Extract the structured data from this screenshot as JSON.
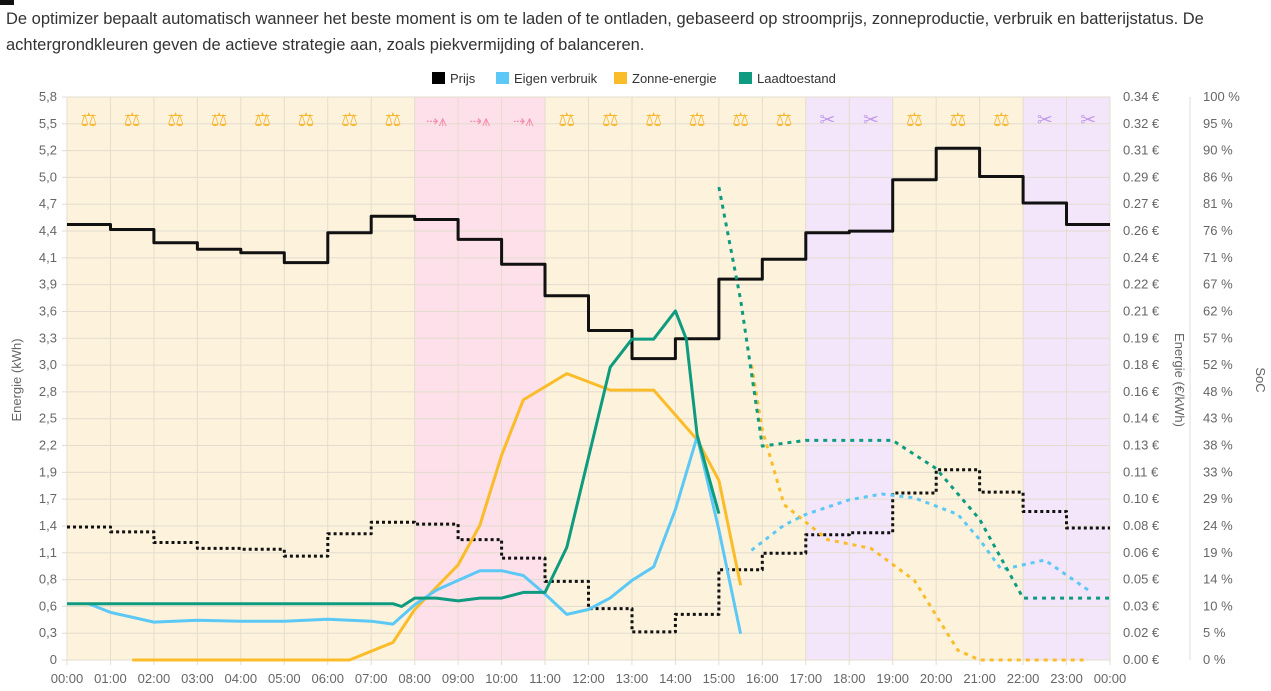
{
  "intro_text": "De optimizer bepaalt automatisch wanneer het beste moment is om te laden of te ontladen, gebaseerd op stroomprijs, zonneproductie, verbruik en batterijstatus. De achtergrondkleuren geven de actieve strategie aan, zoals piekvermijding of balanceren.",
  "colors": {
    "price": "#000000",
    "consumption": "#5bc8f5",
    "solar": "#fbbc2a",
    "soc": "#0e9b7f",
    "balance_bg": "#fdf3dc",
    "grid_bg": "#fde0ea",
    "peak_bg": "#f3e6fb",
    "balance_icon": "#f7b731",
    "grid_icon": "#f48fb1",
    "peak_icon": "#c39be8"
  },
  "chart_data": {
    "type": "line",
    "legend": [
      "Prijs",
      "Eigen verbruik",
      "Zonne-energie",
      "Laadtoestand"
    ],
    "legend_position": "top-center",
    "ylabel_left": "Energie (kWh)",
    "ylabel_right": "Energie (€/kWh)",
    "ylabel_soc": "SoC",
    "x_ticks": [
      "00:00",
      "01:00",
      "02:00",
      "03:00",
      "04:00",
      "05:00",
      "06:00",
      "07:00",
      "08:00",
      "09:00",
      "10:00",
      "11:00",
      "12:00",
      "13:00",
      "14:00",
      "15:00",
      "16:00",
      "17:00",
      "18:00",
      "19:00",
      "20:00",
      "21:00",
      "22:00",
      "23:00",
      "00:00"
    ],
    "y_left_ticks": [
      "5,8",
      "5,5",
      "5,2",
      "5,0",
      "4,7",
      "4,4",
      "4,1",
      "3,9",
      "3,6",
      "3,3",
      "3,0",
      "2,8",
      "2,5",
      "2,2",
      "1,9",
      "1,7",
      "1,4",
      "1,1",
      "0,8",
      "0,6",
      "0,3",
      "0"
    ],
    "y_price_ticks": [
      "0.34 €",
      "0.32 €",
      "0.31 €",
      "0.29 €",
      "0.27 €",
      "0.26 €",
      "0.24 €",
      "0.22 €",
      "0.21 €",
      "0.19 €",
      "0.18 €",
      "0.16 €",
      "0.14 €",
      "0.13 €",
      "0.11 €",
      "0.10 €",
      "0.08 €",
      "0.06 €",
      "0.05 €",
      "0.03 €",
      "0.02 €",
      "0.00 €"
    ],
    "y_soc_ticks": [
      "100 %",
      "95 %",
      "90 %",
      "86 %",
      "81 %",
      "76 %",
      "71 %",
      "67 %",
      "62 %",
      "57 %",
      "52 %",
      "48 %",
      "43 %",
      "38 %",
      "33 %",
      "29 %",
      "24 %",
      "19 %",
      "14 %",
      "10 %",
      "5 %",
      "0 %"
    ],
    "ylim_left": [
      0,
      5.8
    ],
    "ylim_price": [
      0,
      0.34
    ],
    "ylim_soc": [
      0,
      100
    ],
    "xlim_hours": [
      0,
      24
    ],
    "strategies": [
      "balance",
      "balance",
      "balance",
      "balance",
      "balance",
      "balance",
      "balance",
      "balance",
      "grid",
      "grid",
      "grid",
      "balance",
      "balance",
      "balance",
      "balance",
      "balance",
      "balance",
      "peak",
      "peak",
      "balance",
      "balance",
      "balance",
      "peak",
      "peak"
    ],
    "price_eur": [
      0.263,
      0.26,
      0.252,
      0.248,
      0.246,
      0.24,
      0.258,
      0.268,
      0.266,
      0.254,
      0.239,
      0.22,
      0.199,
      0.182,
      0.194,
      0.23,
      0.242,
      0.258,
      0.259,
      0.29,
      0.309,
      0.292,
      0.276,
      0.263
    ],
    "price_dotted_kwh": [
      1.37,
      1.32,
      1.21,
      1.15,
      1.14,
      1.07,
      1.3,
      1.42,
      1.4,
      1.24,
      1.05,
      0.81,
      0.53,
      0.29,
      0.47,
      0.93,
      1.1,
      1.29,
      1.31,
      1.72,
      1.96,
      1.73,
      1.53,
      1.36
    ],
    "consumption": [
      [
        0.5,
        0.58
      ],
      [
        1,
        0.49
      ],
      [
        2,
        0.39
      ],
      [
        3,
        0.41
      ],
      [
        4,
        0.4
      ],
      [
        5,
        0.4
      ],
      [
        6,
        0.42
      ],
      [
        7,
        0.4
      ],
      [
        7.5,
        0.37
      ],
      [
        8,
        0.57
      ],
      [
        8.5,
        0.72
      ],
      [
        9,
        0.82
      ],
      [
        9.5,
        0.92
      ],
      [
        10,
        0.92
      ],
      [
        10.5,
        0.87
      ],
      [
        11,
        0.68
      ],
      [
        11.5,
        0.47
      ],
      [
        12,
        0.52
      ],
      [
        12.5,
        0.64
      ],
      [
        13,
        0.82
      ],
      [
        13.5,
        0.96
      ],
      [
        14,
        1.55
      ],
      [
        14.5,
        2.3
      ],
      [
        15,
        1.34
      ],
      [
        15.5,
        0.27
      ]
    ],
    "consumption_forecast": [
      [
        15.75,
        1.13
      ],
      [
        16.5,
        1.39
      ],
      [
        17,
        1.5
      ],
      [
        18,
        1.65
      ],
      [
        18.75,
        1.71
      ],
      [
        19.5,
        1.67
      ],
      [
        20.5,
        1.5
      ],
      [
        21,
        1.24
      ],
      [
        21.5,
        0.93
      ],
      [
        22.5,
        1.03
      ],
      [
        23.5,
        0.72
      ]
    ],
    "solar": [
      [
        1.5,
        0
      ],
      [
        6.5,
        0
      ],
      [
        7.5,
        0.18
      ],
      [
        8,
        0.52
      ],
      [
        9,
        0.98
      ],
      [
        9.5,
        1.39
      ],
      [
        10,
        2.11
      ],
      [
        10.5,
        2.68
      ],
      [
        11.5,
        2.95
      ],
      [
        12.5,
        2.78
      ],
      [
        13.5,
        2.78
      ],
      [
        14.5,
        2.27
      ],
      [
        15,
        1.85
      ],
      [
        15.5,
        0.77
      ]
    ],
    "solar_forecast": [
      [
        15.75,
        3.04
      ],
      [
        16,
        2.37
      ],
      [
        16.5,
        1.6
      ],
      [
        17.5,
        1.24
      ],
      [
        18.5,
        1.15
      ],
      [
        19.5,
        0.82
      ],
      [
        20.5,
        0.1
      ],
      [
        21,
        0
      ],
      [
        23.5,
        0
      ]
    ],
    "soc": [
      [
        0,
        10
      ],
      [
        7.5,
        10
      ],
      [
        7.7,
        9.5
      ],
      [
        8,
        11
      ],
      [
        8.5,
        11
      ],
      [
        9,
        10.5
      ],
      [
        9.5,
        11
      ],
      [
        10,
        11
      ],
      [
        10.5,
        12
      ],
      [
        11,
        12
      ],
      [
        11.5,
        20
      ],
      [
        12,
        36
      ],
      [
        12.5,
        52
      ],
      [
        13,
        57
      ],
      [
        13.5,
        57
      ],
      [
        14,
        62
      ],
      [
        14.25,
        57
      ],
      [
        14.5,
        40
      ],
      [
        15,
        26
      ]
    ],
    "soc_forecast": [
      [
        15,
        84
      ],
      [
        15.5,
        64
      ],
      [
        16,
        38
      ],
      [
        17,
        39
      ],
      [
        19,
        39
      ],
      [
        20,
        34
      ],
      [
        21,
        25
      ],
      [
        22,
        11
      ],
      [
        24,
        11
      ]
    ]
  }
}
